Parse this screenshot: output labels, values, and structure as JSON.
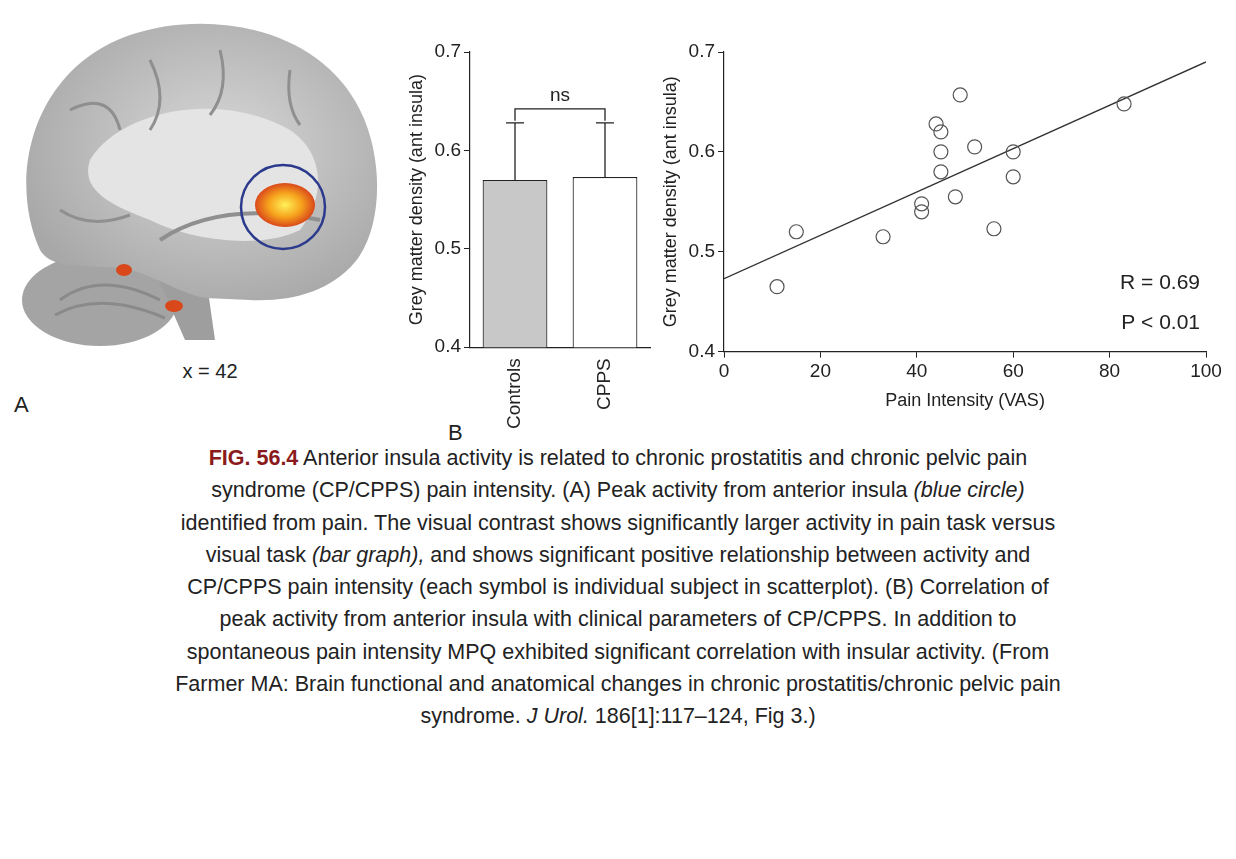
{
  "panel_a": {
    "label": "A",
    "slice": "x = 42"
  },
  "panel_b_label": "B",
  "chart_data": [
    {
      "type": "bar",
      "y_label": "Grey matter density (ant insula)",
      "categories": [
        "Controls",
        "CPPS"
      ],
      "values": [
        0.57,
        0.573
      ],
      "errors": [
        0.058,
        0.055
      ],
      "colors": [
        "#c8c8c8",
        "#ffffff"
      ],
      "ylim": [
        0.4,
        0.7
      ],
      "yticks": [
        0.4,
        0.5,
        0.6,
        0.7
      ],
      "grid": false,
      "annotations": [
        {
          "text": "ns"
        }
      ]
    },
    {
      "type": "scatter",
      "x_label": "Pain Intensity (VAS)",
      "y_label": "Grey matter density (ant insula)",
      "x": [
        11,
        15,
        33,
        41,
        41,
        44,
        45,
        45,
        45,
        48,
        49,
        52,
        56,
        60,
        60,
        83
      ],
      "values": [
        0.465,
        0.52,
        0.515,
        0.54,
        0.548,
        0.628,
        0.62,
        0.6,
        0.58,
        0.555,
        0.657,
        0.605,
        0.523,
        0.6,
        0.575,
        0.648
      ],
      "marker": "circle",
      "xlim": [
        0,
        100
      ],
      "xticks": [
        0,
        20,
        40,
        60,
        80,
        100
      ],
      "ylim": [
        0.4,
        0.7
      ],
      "yticks": [
        0.4,
        0.5,
        0.6,
        0.7
      ],
      "fit_line": {
        "x": [
          0,
          100
        ],
        "values": [
          0.473,
          0.69
        ]
      },
      "annotations": [
        {
          "text": "R = 0.69"
        },
        {
          "text": "P < 0.01"
        }
      ],
      "grid": false
    }
  ],
  "caption": {
    "label": "FIG. 56.4",
    "runs": [
      {
        "text": " Anterior insula activity is related to chronic prostatitis and chronic pelvic pain syndrome (CP/CPPS) pain intensity. (A) Peak activity from anterior insula ",
        "style": "normal"
      },
      {
        "text": "(blue circle)",
        "style": "italic"
      },
      {
        "text": " identified from pain. The visual contrast shows significantly larger activity in pain task versus visual task ",
        "style": "normal"
      },
      {
        "text": "(bar graph),",
        "style": "italic"
      },
      {
        "text": " and shows significant positive relationship between activity and CP/CPPS pain intensity (each symbol is individual subject in scatterplot). (B) Correlation of peak activity from anterior insula with clinical parameters of CP/CPPS. In addition to spontaneous pain intensity MPQ exhibited significant correlation with insular activity. (From Farmer MA: Brain functional and anatomical changes in chronic prostatitis/chronic pelvic pain syndrome. ",
        "style": "normal"
      },
      {
        "text": "J Urol.",
        "style": "italic"
      },
      {
        "text": " 186[1]:117–124, Fig 3.)",
        "style": "normal"
      }
    ]
  }
}
